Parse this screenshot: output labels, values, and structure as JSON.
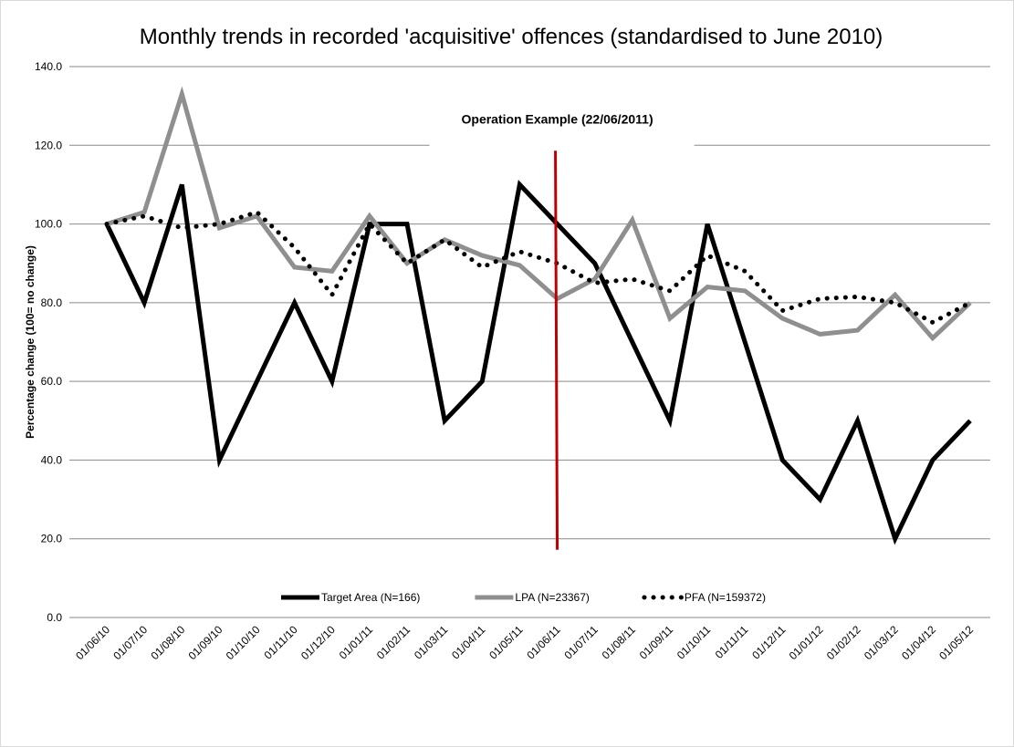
{
  "chart_data": {
    "type": "line",
    "title": "Monthly trends in recorded 'acquisitive' offences (standardised to June 2010)",
    "y_axis_label": "Percentage change  (100= no change)",
    "categories": [
      "01/06/10",
      "01/07/10",
      "01/08/10",
      "01/09/10",
      "01/10/10",
      "01/11/10",
      "01/12/10",
      "01/01/11",
      "01/02/11",
      "01/03/11",
      "01/04/11",
      "01/05/11",
      "01/06/11",
      "01/07/11",
      "01/08/11",
      "01/09/11",
      "01/10/11",
      "01/11/11",
      "01/12/11",
      "01/01/12",
      "01/02/12",
      "01/03/12",
      "01/04/12",
      "01/05/12"
    ],
    "series": [
      {
        "name": "Target Area (N=166)",
        "color": "#000000",
        "line_style": "solid",
        "values": [
          100,
          80,
          110,
          40,
          60,
          80,
          60,
          100,
          100,
          50,
          60,
          110,
          100,
          90,
          70,
          50,
          100,
          70,
          40,
          30,
          50,
          20,
          40,
          50
        ]
      },
      {
        "name": "LPA (N=23367)",
        "color": "#8f8f8f",
        "line_style": "solid",
        "values": [
          100,
          103,
          133,
          99,
          102,
          89,
          88,
          102,
          90,
          96,
          92,
          89.5,
          81,
          86,
          101,
          76,
          84,
          83,
          76,
          72,
          73,
          82,
          71,
          80
        ]
      },
      {
        "name": "PFA (N=159372)",
        "color": "#000000",
        "line_style": "dotted",
        "values": [
          100,
          102,
          99,
          100,
          103,
          94,
          82,
          100,
          90,
          96,
          89,
          93,
          90,
          85,
          86,
          83,
          92,
          88,
          78,
          81,
          81.5,
          80,
          75,
          80
        ]
      }
    ],
    "annotation": {
      "text": "Operation Example (22/06/2011)",
      "category": "01/06/11",
      "color": "#c00000"
    },
    "ylim": [
      0,
      140
    ],
    "yticks": [
      {
        "value": 0,
        "label": "0.0"
      },
      {
        "value": 20,
        "label": "20.0"
      },
      {
        "value": 40,
        "label": "40.0"
      },
      {
        "value": 60,
        "label": "60.0"
      },
      {
        "value": 80,
        "label": "80.0"
      },
      {
        "value": 100,
        "label": "100.0"
      },
      {
        "value": 120,
        "label": "120.0"
      },
      {
        "value": 140,
        "label": "140.0"
      }
    ],
    "grid": true,
    "legend": "bottom"
  }
}
